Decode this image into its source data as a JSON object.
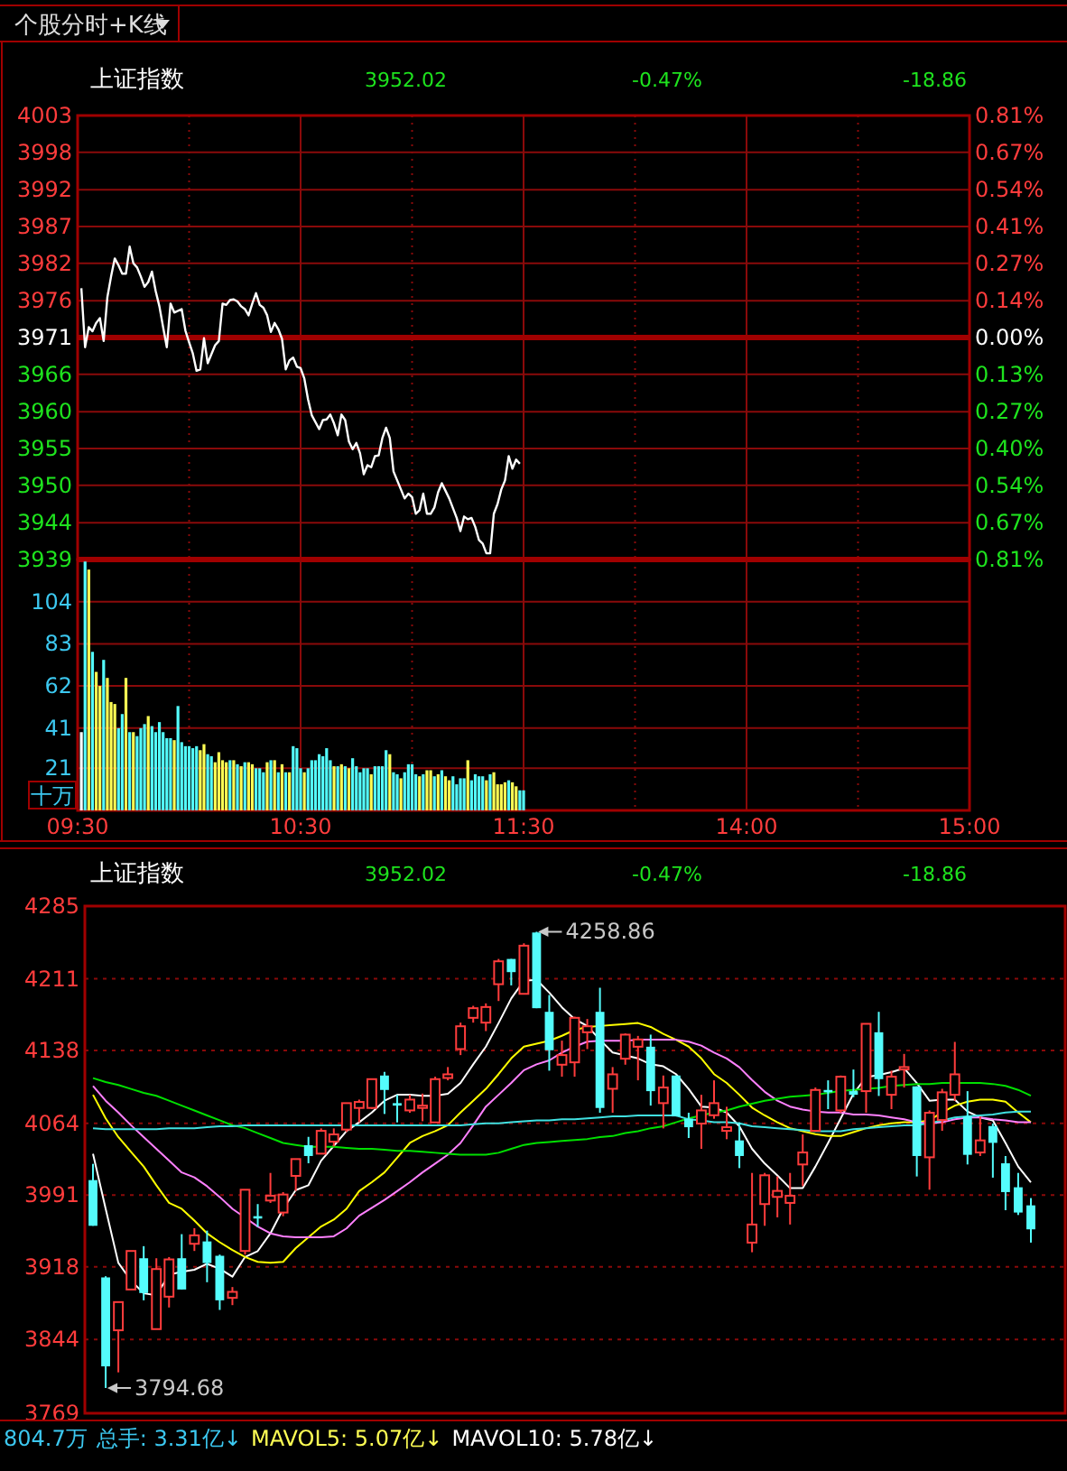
{
  "chart_data": [
    {
      "type": "line",
      "title": "上证指数",
      "annotations": [
        "个股分时+K线",
        "3952.02",
        "-0.47%",
        "-18.86"
      ],
      "categories": [
        null,
        null,
        null,
        null,
        null,
        null,
        null,
        null,
        null,
        null,
        null,
        null,
        null,
        null,
        null,
        null,
        null,
        null,
        null,
        null,
        null,
        null,
        null,
        null,
        null,
        null,
        null,
        null,
        null,
        null,
        null,
        null,
        null,
        null,
        null,
        null,
        null,
        null,
        null,
        null,
        null,
        null,
        null,
        null,
        null,
        null,
        null,
        null,
        null,
        null,
        null,
        null,
        null,
        null,
        null,
        null,
        null,
        null,
        null,
        null,
        null,
        null,
        null,
        null,
        null,
        null,
        null,
        null,
        null,
        null,
        null,
        null,
        null,
        null,
        null,
        null,
        null,
        null,
        null,
        null,
        null,
        null,
        null,
        null,
        null,
        null,
        null,
        null,
        null,
        null,
        null,
        null,
        null,
        null,
        null,
        null,
        null,
        null,
        null,
        null,
        null,
        null,
        null,
        null,
        null,
        null,
        null,
        null,
        null,
        null,
        null,
        null,
        null,
        null,
        null,
        null,
        null,
        null,
        null,
        null,
        null,
        null,
        null,
        null,
        null,
        null,
        null,
        null,
        null,
        null,
        null,
        null,
        null,
        null,
        null,
        null,
        null,
        null,
        null,
        null,
        null,
        null,
        null,
        null,
        null,
        null,
        null,
        null,
        null,
        null,
        null,
        null,
        null,
        null,
        null,
        null,
        null,
        null,
        null,
        null,
        null,
        null,
        null,
        null,
        null,
        null,
        null,
        null,
        null,
        null,
        null,
        null,
        null,
        null,
        null,
        null,
        null,
        null,
        null,
        null,
        null,
        null,
        null,
        null,
        null,
        null,
        null,
        null,
        null,
        null,
        null,
        null,
        null,
        null,
        null,
        null,
        null,
        null,
        null,
        null,
        null,
        null,
        null,
        null,
        null,
        null,
        null,
        null,
        null,
        null,
        null,
        null,
        null,
        null,
        null,
        null,
        null,
        null,
        null,
        null,
        null,
        null,
        null,
        null,
        null,
        null,
        null,
        null,
        null,
        null,
        null,
        null,
        null,
        null,
        null,
        null,
        null,
        null,
        null,
        null,
        null
      ],
      "series": [
        {
          "color": "#ffffff",
          "values": [
            null,
            3978.1,
            3969.6,
            3972.5,
            3971.9,
            3973.1,
            3973.8,
            3970.5,
            3976.8,
            3979.8,
            3982.4,
            3981.4,
            3980.2,
            3980.2,
            3984.1,
            3981.7,
            3981.1,
            3979.8,
            3978.3,
            3979.0,
            3980.5,
            3977.7,
            3975.5,
            3972.5,
            3969.6,
            3975.9,
            3974.6,
            null,
            3975.1,
            3972.0,
            3970.3,
            3968.7,
            3966.2,
            3966.4,
            3970.9,
            3967.3,
            3968.6,
            3969.9,
            3970.5,
            3975.9,
            3975.7,
            3976.4,
            3976.5,
            3976.2,
            3975.5,
            3975.1,
            3974.2,
            3975.9,
            3977.4,
            3975.7,
            3975.3,
            3974.2,
            3971.8,
            3973.1,
            3972.2,
            3970.8,
            3966.4,
            3967.7,
            3968.1,
            3966.8,
            3966.6,
            3965.1,
            3962.1,
            3959.8,
            null,
            3957.8,
            3959.1,
            3959.2,
            3959.9,
            3958.6,
            3956.9,
            3959.9,
            3959.1,
            3956.0,
            3954.9,
            3955.8,
            3954.3,
            3951.3,
            3952.6,
            3952.3,
            3953.9,
            3954.0,
            3956.5,
            3958.0,
            3956.5,
            3951.7,
            3950.4,
            3949.1,
            3947.8,
            3948.5,
            3948.0,
            3945.6,
            3946.1,
            3948.5,
            3945.6,
            3945.6,
            3946.5,
            3948.7,
            3950.0,
            3948.9,
            3947.8,
            null,
            3945.0,
            3943.1,
            3945.2,
            3944.8,
            3945.0,
            3943.7,
            3941.8,
            3941.3,
            3939.9,
            3939.9,
            3945.6,
            3947.0,
            3949.1,
            3950.4,
            3953.9,
            3952.1,
            3953.4,
            3952.8,
            null,
            null,
            null,
            null,
            null,
            null,
            null,
            null,
            null,
            null,
            null,
            null,
            null,
            null,
            null,
            null,
            null,
            null,
            null,
            null,
            null,
            null,
            null,
            null,
            null,
            null,
            null,
            null,
            null,
            null,
            null,
            null,
            null,
            null,
            null,
            null,
            null,
            null,
            null,
            null,
            null,
            null,
            null,
            null,
            null,
            null,
            null,
            null,
            null,
            null,
            null,
            null,
            null,
            null,
            null,
            null,
            null,
            null,
            null,
            null,
            null,
            null,
            null,
            null,
            null,
            null,
            null,
            null,
            null,
            null,
            null,
            null,
            null,
            null,
            null,
            null,
            null,
            null,
            null,
            null,
            null,
            null,
            null,
            null,
            null,
            null,
            null,
            null,
            null,
            null,
            null,
            null,
            null,
            null,
            null,
            null,
            null,
            null,
            null,
            null,
            null,
            null,
            null,
            null,
            null,
            null,
            null,
            null,
            null,
            null,
            null,
            null,
            null,
            null,
            null,
            null,
            null,
            null,
            null,
            null,
            null
          ]
        }
      ],
      "ylim": [
        3939,
        4003
      ],
      "yticks": [
        3939,
        {
          "value": 3944.3,
          "label": "3944"
        },
        {
          "value": 3949.7,
          "label": "3950"
        },
        3955,
        {
          "value": 3960.3,
          "label": "3960"
        },
        {
          "value": 3965.7,
          "label": "3966"
        },
        3971,
        {
          "value": 3976.3,
          "label": "3976"
        },
        {
          "value": 3981.7,
          "label": "3982"
        },
        3987,
        {
          "value": 3992.3,
          "label": "3992"
        },
        {
          "value": 3997.7,
          "label": "3998"
        },
        4003
      ],
      "y2lim": [
        -0.81,
        0.81
      ],
      "y2ticks": [
        {
          "value": -0.81,
          "label": "0.81%"
        },
        {
          "value": -0.675,
          "label": "0.67%"
        },
        {
          "value": -0.54,
          "label": "0.54%"
        },
        {
          "value": -0.405,
          "label": "0.40%"
        },
        {
          "value": -0.27,
          "label": "0.27%"
        },
        {
          "value": -0.135,
          "label": "0.13%"
        },
        {
          "value": 0,
          "label": "0.00%"
        },
        {
          "value": 0.135,
          "label": "0.14%"
        },
        {
          "value": 0.27,
          "label": "0.27%"
        },
        {
          "value": 0.405,
          "label": "0.41%"
        },
        {
          "value": 0.54,
          "label": "0.54%"
        },
        {
          "value": 0.675,
          "label": "0.67%"
        },
        {
          "value": 0.81,
          "label": "0.81%"
        }
      ],
      "ref_lines": [
        {
          "axis": "y",
          "value": 3971
        }
      ],
      "grid": true,
      "tick_labels": "y"
    },
    {
      "type": "bar",
      "ylabel": "十万",
      "categories": [
        "09:30",
        null,
        null,
        null,
        null,
        null,
        null,
        null,
        null,
        null,
        null,
        null,
        null,
        null,
        null,
        null,
        null,
        null,
        null,
        null,
        null,
        null,
        null,
        null,
        null,
        null,
        null,
        null,
        null,
        null,
        null,
        null,
        null,
        null,
        null,
        null,
        null,
        null,
        null,
        null,
        null,
        null,
        null,
        null,
        null,
        null,
        null,
        null,
        null,
        null,
        null,
        null,
        null,
        null,
        null,
        null,
        null,
        null,
        null,
        null,
        "10:30",
        null,
        null,
        null,
        null,
        null,
        null,
        null,
        null,
        null,
        null,
        null,
        null,
        null,
        null,
        null,
        null,
        null,
        null,
        null,
        null,
        null,
        null,
        null,
        null,
        null,
        null,
        null,
        null,
        null,
        null,
        null,
        null,
        null,
        null,
        null,
        null,
        null,
        null,
        null,
        null,
        null,
        null,
        null,
        null,
        null,
        null,
        null,
        null,
        null,
        null,
        null,
        null,
        null,
        null,
        null,
        null,
        null,
        null,
        null,
        "11:30",
        null,
        null,
        null,
        null,
        null,
        null,
        null,
        null,
        null,
        null,
        null,
        null,
        null,
        null,
        null,
        null,
        null,
        null,
        null,
        null,
        null,
        null,
        null,
        null,
        null,
        null,
        null,
        null,
        null,
        null,
        null,
        null,
        null,
        null,
        null,
        null,
        null,
        null,
        null,
        null,
        null,
        null,
        null,
        null,
        null,
        null,
        null,
        null,
        null,
        null,
        null,
        null,
        null,
        null,
        null,
        null,
        null,
        null,
        null,
        "14:00",
        null,
        null,
        null,
        null,
        null,
        null,
        null,
        null,
        null,
        null,
        null,
        null,
        null,
        null,
        null,
        null,
        null,
        null,
        null,
        null,
        null,
        null,
        null,
        null,
        null,
        null,
        null,
        null,
        null,
        null,
        null,
        null,
        null,
        null,
        null,
        null,
        null,
        null,
        null,
        null,
        null,
        null,
        null,
        null,
        null,
        null,
        null,
        null,
        null,
        null,
        null,
        null,
        null,
        null,
        null,
        null,
        null,
        null,
        null,
        "15:00"
      ],
      "series": [
        {
          "values": [
            null,
            39,
            124,
            120,
            79,
            69,
            62,
            75,
            66,
            54,
            53,
            41,
            48,
            66,
            39,
            39,
            37,
            41,
            43,
            47,
            42,
            39,
            44,
            39,
            36,
            36,
            35,
            52,
            34,
            32,
            32,
            31,
            32,
            30,
            33,
            28,
            27,
            24,
            29,
            25,
            24,
            25,
            25,
            23,
            22,
            24,
            24,
            23,
            21,
            21,
            19,
            24,
            25,
            25,
            19,
            23,
            19,
            19,
            32,
            31,
            21,
            19,
            21,
            25,
            25,
            28,
            27,
            31,
            25,
            22,
            22,
            23,
            22,
            21,
            26,
            22,
            19,
            21,
            21,
            18,
            22,
            22,
            22,
            30,
            28,
            19,
            18,
            16,
            19,
            23,
            23,
            18,
            17,
            18,
            20,
            20,
            17,
            18,
            20,
            17,
            15,
            17,
            13,
            16,
            16,
            25,
            15,
            18,
            17,
            17,
            15,
            18,
            19,
            13,
            13,
            14,
            15,
            14,
            12,
            10,
            10,
            null,
            null,
            null,
            null,
            null,
            null,
            null,
            null,
            null,
            null,
            null,
            null,
            null,
            null,
            null,
            null,
            null,
            null,
            null,
            null,
            null,
            null,
            null,
            null,
            null,
            null,
            null,
            null,
            null,
            null,
            null,
            null,
            null,
            null,
            null,
            null,
            null,
            null,
            null,
            null,
            null,
            null,
            null,
            null,
            null,
            null,
            null,
            null,
            null,
            null,
            null,
            null,
            null,
            null,
            null,
            null,
            null,
            null,
            null,
            null,
            null,
            null,
            null,
            null,
            null,
            null,
            null,
            null,
            null,
            null,
            null,
            null,
            null,
            null,
            null,
            null,
            null,
            null,
            null,
            null,
            null,
            null,
            null,
            null,
            null,
            null,
            null,
            null,
            null,
            null,
            null,
            null,
            null,
            null,
            null,
            null,
            null,
            null,
            null,
            null,
            null,
            null,
            null,
            null,
            null,
            null,
            null,
            null,
            null,
            null,
            null,
            null,
            null,
            null,
            null,
            null,
            null,
            null,
            null,
            null
          ],
          "colors": [
            null,
            "#ffffff",
            "#54fcfc",
            "#ffff54",
            "#54fcfc",
            "#ffff54",
            "#ffff54",
            "#54fcfc",
            "#ffff54",
            "#ffff54",
            "#ffff54",
            "#54fcfc",
            "#54fcfc",
            "#ffff54",
            "#54fcfc",
            "#ffff54",
            "#54fcfc",
            "#54fcfc",
            "#54fcfc",
            "#ffff54",
            "#54fcfc",
            "#54fcfc",
            "#54fcfc",
            "#54fcfc",
            "#54fcfc",
            "#54fcfc",
            "#ffff54",
            "#54fcfc",
            "#54fcfc",
            "#54fcfc",
            "#54fcfc",
            "#54fcfc",
            "#54fcfc",
            "#ffff54",
            "#ffff54",
            "#54fcfc",
            "#54fcfc",
            "#ffff54",
            "#ffff54",
            "#ffff54",
            "#ffff54",
            "#54fcfc",
            "#ffff54",
            "#54fcfc",
            "#ffff54",
            "#54fcfc",
            "#ffff54",
            "#ffff54",
            "#54fcfc",
            "#54fcfc",
            "#54fcfc",
            "#ffff54",
            "#54fcfc",
            "#ffff54",
            "#54fcfc",
            "#ffff54",
            "#54fcfc",
            "#ffff54",
            "#54fcfc",
            "#54fcfc",
            "#54fcfc",
            "#ffff54",
            "#54fcfc",
            "#54fcfc",
            "#54fcfc",
            "#54fcfc",
            "#54fcfc",
            "#54fcfc",
            "#54fcfc",
            "#ffff54",
            "#54fcfc",
            "#ffff54",
            "#54fcfc",
            "#ffff54",
            "#54fcfc",
            "#54fcfc",
            "#54fcfc",
            "#54fcfc",
            "#54fcfc",
            "#ffff54",
            "#54fcfc",
            "#54fcfc",
            "#54fcfc",
            "#54fcfc",
            "#ffff54",
            "#54fcfc",
            "#54fcfc",
            "#ffff54",
            "#54fcfc",
            "#54fcfc",
            "#54fcfc",
            "#54fcfc",
            "#ffff54",
            "#54fcfc",
            "#ffff54",
            "#ffff54",
            "#54fcfc",
            "#ffff54",
            "#54fcfc",
            "#ffff54",
            "#ffff54",
            "#54fcfc",
            "#54fcfc",
            "#54fcfc",
            "#54fcfc",
            "#ffff54",
            "#54fcfc",
            "#54fcfc",
            "#54fcfc",
            "#54fcfc",
            "#ffff54",
            "#54fcfc",
            "#ffff54",
            "#ffff54",
            "#ffff54",
            "#ffff54",
            "#54fcfc",
            "#ffff54",
            "#ffff54",
            "#54fcfc",
            "#54fcfc",
            null,
            null,
            null,
            null,
            null,
            null,
            null,
            null,
            null,
            null,
            null,
            null,
            null,
            null,
            null,
            null,
            null,
            null,
            null,
            null,
            null,
            null,
            null,
            null,
            null,
            null,
            null,
            null,
            null,
            null,
            null,
            null,
            null,
            null,
            null,
            null,
            null,
            null,
            null,
            null,
            null,
            null,
            null,
            null,
            null,
            null,
            null,
            null,
            null,
            null,
            null,
            null,
            null,
            null,
            null,
            null,
            null,
            null,
            null,
            null,
            null,
            null,
            null,
            null,
            null,
            null,
            null,
            null,
            null,
            null,
            null,
            null,
            null,
            null,
            null,
            null,
            null,
            null,
            null,
            null,
            null,
            null,
            null,
            null,
            null,
            null,
            null,
            null,
            null,
            null,
            null,
            null,
            null,
            null,
            null,
            null,
            null,
            null,
            null,
            null,
            null,
            null,
            null,
            null,
            null,
            null,
            null,
            null,
            null,
            null,
            null,
            null,
            null,
            null,
            null,
            null,
            null,
            null,
            null,
            null
          ]
        }
      ],
      "ylim": [
        0,
        125
      ],
      "yticks": [
        21,
        41,
        62,
        83,
        104
      ],
      "grid": true
    },
    {
      "type": "candlestick",
      "title": "上证指数",
      "annotations": [
        "3952.02",
        "-0.47%",
        "-18.86",
        "3794.68",
        "4258.86",
        "804.7万",
        "总手: 3.31亿↓",
        "MAVOL5: 5.07亿↓",
        "MAVOL10: 5.78亿↓"
      ],
      "categories": [
        null,
        null,
        null,
        null,
        null,
        null,
        null,
        null,
        null,
        null,
        null,
        null,
        null,
        null,
        null,
        null,
        null,
        null,
        null,
        null,
        null,
        null,
        null,
        null,
        null,
        null,
        null,
        null,
        null,
        null,
        null,
        null,
        null,
        null,
        null,
        null,
        null,
        null,
        null,
        null,
        null,
        null,
        null,
        null,
        null,
        null,
        null,
        null,
        null,
        null,
        null,
        null,
        null,
        null,
        null,
        null,
        null,
        null,
        null,
        null,
        null,
        null,
        null,
        null,
        null,
        null,
        null,
        null,
        null,
        null,
        null,
        null,
        null,
        null,
        null
      ],
      "ohlc": [
        [
          4006.2,
          4022.7,
          3959.7,
          3959.7
        ],
        [
          3907.2,
          3908.4,
          3794.68,
          3816.7
        ],
        [
          3853.4,
          3882.1,
          3810.6,
          3882.1
        ],
        [
          3894.9,
          3934.1,
          3894.9,
          3934.1
        ],
        [
          3926.7,
          3939.0,
          3883.9,
          3891.3
        ],
        [
          3854.6,
          3926.7,
          3854.6,
          3915.7
        ],
        [
          3887.6,
          3927.9,
          3876.6,
          3925.5
        ],
        [
          3926.7,
          3951.2,
          3894.9,
          3894.9
        ],
        [
          3941.4,
          3957.3,
          3934.1,
          3950.0
        ],
        [
          3943.8,
          3954.8,
          3902.3,
          3921.8
        ],
        [
          3929.2,
          3930.4,
          3874.1,
          3883.9
        ],
        [
          3886.4,
          3897.4,
          3879.0,
          3892.5
        ],
        [
          3934.1,
          3996.4,
          3930.4,
          3996.4
        ],
        [
          3969.5,
          3981.8,
          3958.5,
          3967.1
        ],
        [
          3985.4,
          4013.5,
          3983.0,
          3990.3
        ],
        [
          3973.2,
          3994.0,
          3969.5,
          3991.5
        ],
        [
          4010.5,
          4027.6,
          3995.2,
          4027.6
        ],
        [
          4041.7,
          4050.2,
          4023.3,
          4030.7
        ],
        [
          4033.1,
          4058.8,
          4033.1,
          4056.3
        ],
        [
          4045.3,
          4058.8,
          4040.4,
          4052.7
        ],
        [
          4057.6,
          4084.5,
          4055.1,
          4084.5
        ],
        [
          4079.6,
          4088.1,
          4064.9,
          4085.7
        ],
        [
          4079.6,
          4108.9,
          4078.4,
          4108.9
        ],
        [
          4112.6,
          4116.3,
          4073.5,
          4097.9
        ],
        [
          4084.5,
          4093.0,
          4064.9,
          4082.0
        ],
        [
          4077.1,
          4093.0,
          4074.7,
          4088.1
        ],
        [
          4079.6,
          4094.2,
          4066.1,
          4082.0
        ],
        [
          4064.9,
          4111.4,
          4064.9,
          4108.9
        ],
        [
          4110.1,
          4121.2,
          4107.7,
          4113.8
        ],
        [
          4139.5,
          4166.4,
          4133.4,
          4162.7
        ],
        [
          4171.3,
          4183.5,
          4166.4,
          4181.1
        ],
        [
          4166.4,
          4186.0,
          4157.8,
          4182.3
        ],
        [
          4205.5,
          4231.2,
          4188.4,
          4228.8
        ],
        [
          4231.2,
          4231.2,
          4204.3,
          4217.8
        ],
        [
          4195.7,
          4247.1,
          4195.7,
          4244.7
        ],
        [
          4258.1,
          4258.86,
          4181.1,
          4181.1
        ],
        [
          4177.4,
          4194.5,
          4117.5,
          4138.3
        ],
        [
          4123.6,
          4148.1,
          4111.4,
          4133.4
        ],
        [
          4126.0,
          4172.5,
          4111.4,
          4171.3
        ],
        [
          4156.6,
          4170.1,
          4139.5,
          4162.7
        ],
        [
          4177.4,
          4201.9,
          4074.7,
          4079.6
        ],
        [
          4099.1,
          4121.2,
          4074.7,
          4113.8
        ],
        [
          4129.7,
          4155.4,
          4123.6,
          4154.2
        ],
        [
          4141.9,
          4152.9,
          4107.7,
          4149.3
        ],
        [
          4141.9,
          4154.2,
          4082.0,
          4096.7
        ],
        [
          4084.5,
          4112.6,
          4058.8,
          4100.4
        ],
        [
          4112.6,
          4112.6,
          4071.0,
          4071.0
        ],
        [
          4068.6,
          4074.7,
          4049.0,
          4060.0
        ],
        [
          4063.7,
          4093.0,
          4038.0,
          4077.1
        ],
        [
          4072.2,
          4107.7,
          4068.6,
          4084.5
        ],
        [
          4056.3,
          4080.8,
          4047.8,
          4060.0
        ],
        [
          4046.6,
          4064.9,
          4018.4,
          4030.7
        ],
        [
          3942.6,
          4013.5,
          3932.8,
          3961.0
        ],
        [
          3981.8,
          4013.5,
          3959.7,
          4011.1
        ],
        [
          3989.1,
          4009.9,
          3968.3,
          3995.2
        ],
        [
          3983.0,
          4013.5,
          3961.0,
          3990.3
        ],
        [
          4022.1,
          4052.7,
          4000.1,
          4034.3
        ],
        [
          4056.3,
          4100.4,
          4056.3,
          4097.9
        ],
        [
          4097.9,
          4107.7,
          4078.4,
          4095.5
        ],
        [
          4077.1,
          4112.6,
          4074.7,
          4111.4
        ],
        [
          4096.7,
          4118.7,
          4090.6,
          4093.0
        ],
        [
          4096.7,
          4165.2,
          4074.7,
          4165.2
        ],
        [
          4156.6,
          4177.4,
          4091.8,
          4108.9
        ],
        [
          4093.0,
          4117.5,
          4078.4,
          4111.4
        ],
        [
          4118.7,
          4134.6,
          4100.4,
          4121.2
        ],
        [
          4101.6,
          4101.6,
          4009.9,
          4030.7
        ],
        [
          4029.4,
          4077.1,
          3996.4,
          4074.7
        ],
        [
          4067.3,
          4099.1,
          4056.3,
          4095.5
        ],
        [
          4093.0,
          4146.8,
          4086.9,
          4113.8
        ],
        [
          4071.0,
          4096.7,
          4022.1,
          4031.9
        ],
        [
          4034.3,
          4071.0,
          4030.7,
          4046.6
        ],
        [
          4061.2,
          4063.7,
          4008.7,
          4044.1
        ],
        [
          4023.3,
          4030.7,
          3975.6,
          3994.0
        ],
        [
          3998.9,
          4013.5,
          3970.7,
          3973.2
        ],
        [
          3980.5,
          3987.9,
          3942.6,
          3956.1
        ]
      ],
      "series": [
        {
          "type": "line",
          "color": "#ffffff",
          "values": [
            4033,
            3977,
            3922,
            3904,
            3891,
            3889,
            3910,
            3913,
            3915,
            3921,
            3916,
            3908,
            3928,
            3934,
            3952,
            3977,
            3996,
            4001,
            4026,
            4041,
            4056,
            4065,
            4075,
            4087,
            4093,
            4093,
            4092,
            4092,
            4094,
            4105,
            4124,
            4142,
            4166,
            4191,
            4209,
            4210,
            4197,
            4182,
            4170,
            4163,
            4149,
            4136,
            4133,
            4130,
            4124,
            4122,
            4114,
            4099,
            4081,
            4080,
            4075,
            4061,
            4038,
            4023,
            4011,
            3998,
            3998,
            4020,
            4044,
            4069,
            4094,
            4111,
            4113,
            4116,
            4120,
            4105,
            4087,
            4088,
            4088,
            4076,
            4070,
            4067,
            4044,
            4020,
            4004
          ]
        },
        {
          "type": "line",
          "color": "#ffff00",
          "values": [
            4093,
            4069,
            4050,
            4035,
            4020,
            4001,
            3983,
            3977,
            3965,
            3952,
            3943,
            3935,
            3928,
            3923,
            3922,
            3923,
            3937,
            3948,
            3959,
            3966,
            3977,
            3995,
            4004,
            4014,
            4029,
            4044,
            4051,
            4056,
            4062,
            4075,
            4087,
            4099,
            4114,
            4130,
            4142,
            4145,
            4148,
            4153,
            4159,
            4162,
            4163,
            4164,
            4165,
            4166,
            4162,
            4155,
            4149,
            4142,
            4130,
            4114,
            4105,
            4093,
            4080,
            4072,
            4065,
            4059,
            4056,
            4053,
            4051,
            4051,
            4055,
            4059,
            4062,
            4064,
            4065,
            4065,
            4067,
            4075,
            4082,
            4086,
            4088,
            4088,
            4086,
            4075,
            4065
          ]
        },
        {
          "type": "line",
          "color": "#ff80ff",
          "values": [
            4102,
            4087,
            4075,
            4062,
            4050,
            4038,
            4026,
            4014,
            4009,
            4000,
            3989,
            3977,
            3968,
            3959,
            3952,
            3949,
            3948,
            3948,
            3948,
            3949,
            3957,
            3970,
            3978,
            3986,
            3995,
            4004,
            4014,
            4023,
            4032,
            4044,
            4062,
            4081,
            4093,
            4105,
            4118,
            4124,
            4128,
            4136,
            4142,
            4147,
            4148,
            4148,
            4148,
            4149,
            4149,
            4149,
            4149,
            4147,
            4143,
            4136,
            4130,
            4121,
            4108,
            4096,
            4087,
            4081,
            4078,
            4076,
            4075,
            4075,
            4073,
            4073,
            4072,
            4070,
            4068,
            4065,
            4064,
            4065,
            4068,
            4070,
            4070,
            4068,
            4067,
            4065,
            4065
          ]
        },
        {
          "type": "line",
          "color": "#00e000",
          "values": [
            4110,
            4106,
            4103,
            4099,
            4095,
            4092,
            4087,
            4082,
            4077,
            4072,
            4067,
            4062,
            4059,
            4054,
            4049,
            4044,
            4042,
            4040,
            4040,
            4040,
            4039,
            4038,
            4038,
            4037,
            4036,
            4036,
            4035,
            4034,
            4033,
            4032,
            4032,
            4032,
            4034,
            4038,
            4042,
            4044,
            4045,
            4046,
            4047,
            4048,
            4050,
            4051,
            4054,
            4056,
            4059,
            4061,
            4065,
            4069,
            4072,
            4075,
            4077,
            4081,
            4084,
            4087,
            4089,
            4091,
            4092,
            4093,
            4095,
            4097,
            4098,
            4099,
            4100,
            4102,
            4103,
            4104,
            4104,
            4105,
            4105,
            4105,
            4105,
            4104,
            4102,
            4098,
            4092
          ]
        },
        {
          "type": "line",
          "color": "#40e0e0",
          "values": [
            4059,
            4058,
            4058,
            4058,
            4058,
            4058,
            4059,
            4059,
            4059,
            4060,
            4061,
            4061,
            4062,
            4062,
            4062,
            4062,
            4062,
            4062,
            4062,
            4062,
            4062,
            4062,
            4062,
            4062,
            4062,
            4062,
            4062,
            4062,
            4062,
            4062,
            4063,
            4064,
            4064,
            4065,
            4066,
            4067,
            4067,
            4068,
            4068,
            4069,
            4070,
            4071,
            4071,
            4072,
            4072,
            4072,
            4072,
            4068,
            4067,
            4065,
            4065,
            4064,
            4061,
            4060,
            4059,
            4058,
            4057,
            4056,
            4056,
            4056,
            4058,
            4059,
            4060,
            4061,
            4062,
            4062,
            4064,
            4067,
            4070,
            4071,
            4072,
            4073,
            4075,
            4076,
            4076
          ]
        }
      ],
      "ylim": [
        3769,
        4285
      ],
      "yticks": [
        3769,
        3844,
        3918,
        3991,
        4064,
        4138,
        4211,
        4285
      ],
      "grid": "y"
    }
  ]
}
